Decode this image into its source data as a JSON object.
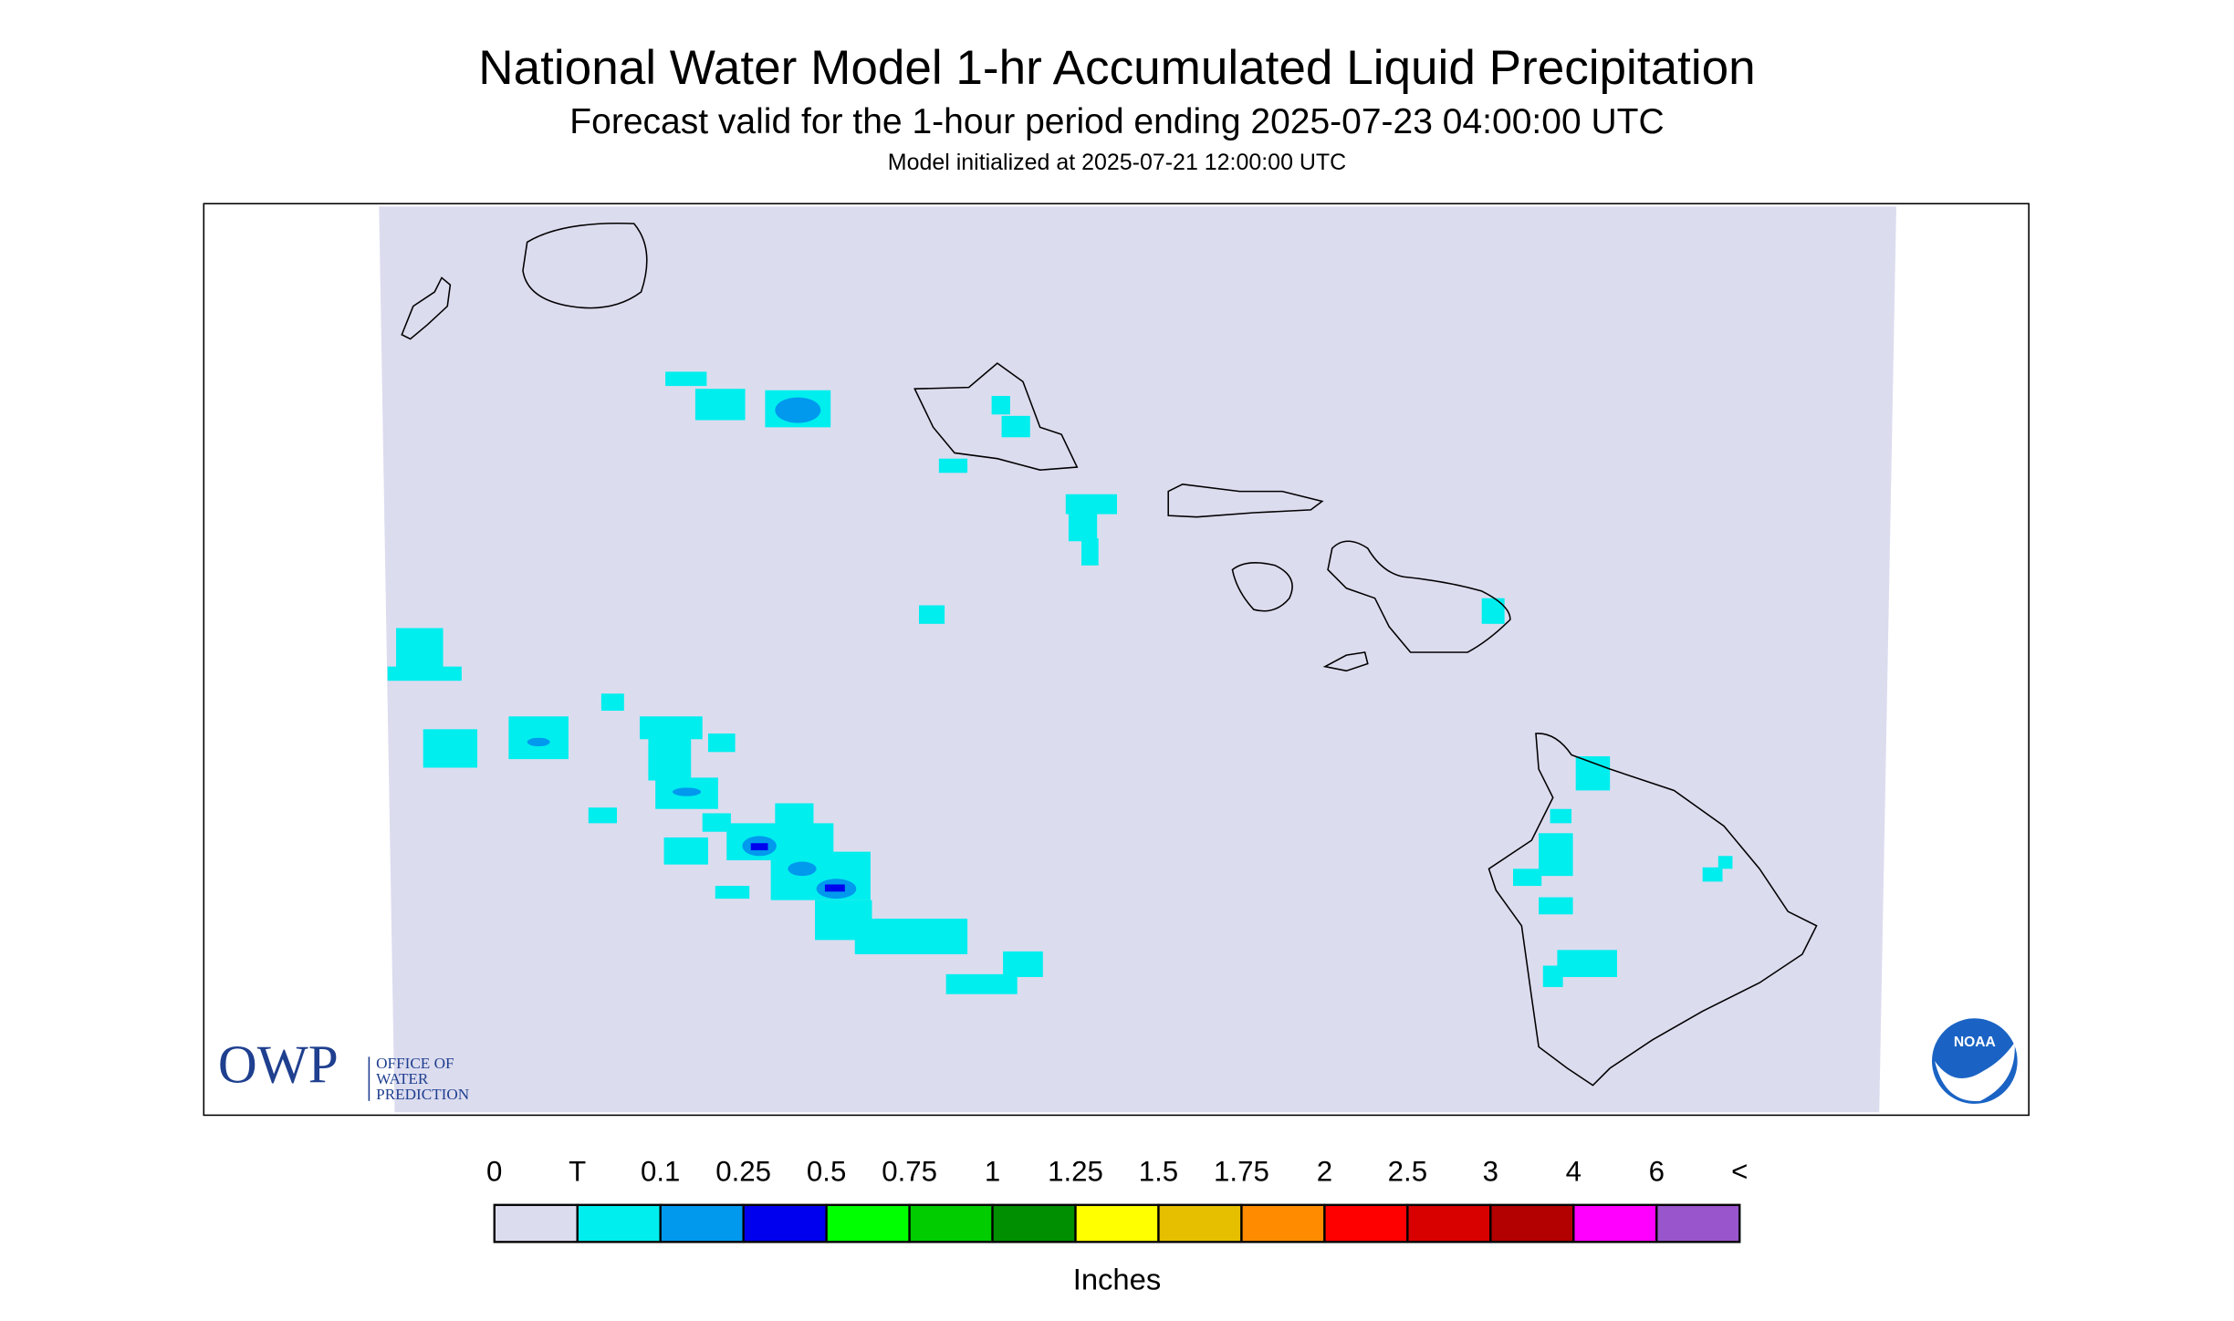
{
  "title": "National Water Model 1-hr Accumulated Liquid Precipitation",
  "subtitle": "Forecast valid for the 1-hour period ending 2025-07-23 04:00:00 UTC",
  "init_text": "Model initialized at 2025-07-21 12:00:00 UTC",
  "legend": {
    "labels": [
      "0",
      "T",
      "0.1",
      "0.25",
      "0.5",
      "0.75",
      "1",
      "1.25",
      "1.5",
      "1.75",
      "2",
      "2.5",
      "3",
      "4",
      "6",
      "<"
    ],
    "colors": [
      "#dcdcef",
      "#00eeee",
      "#0099ee",
      "#0000ee",
      "#00ff00",
      "#00cc00",
      "#008f00",
      "#ffff00",
      "#e6bf00",
      "#ff8c00",
      "#ff0000",
      "#d90000",
      "#b30000",
      "#ff00ff",
      "#9955cc"
    ],
    "unit": "Inches"
  },
  "logos": {
    "owp": "OWP",
    "owp_lines": [
      "OFFICE OF",
      "WATER",
      "PREDICTION"
    ],
    "noaa": "NOAA"
  }
}
